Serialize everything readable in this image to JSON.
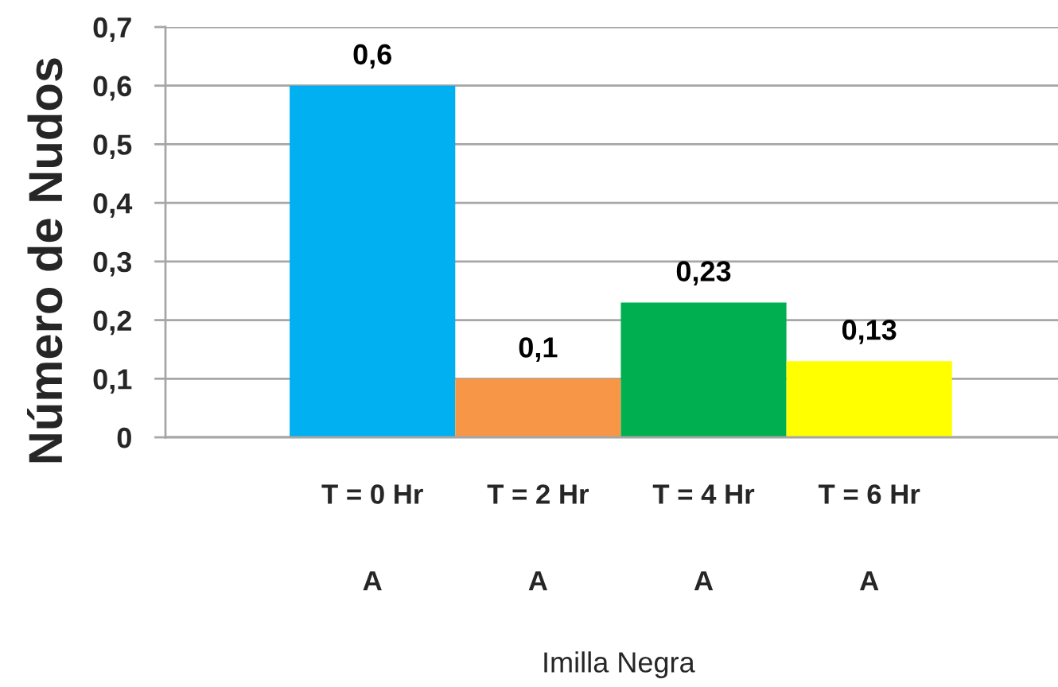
{
  "chart_data": {
    "type": "bar",
    "ylabel": "Número de Nudos",
    "categories": [
      "T = 0 Hr",
      "T = 2 Hr",
      "T = 4 Hr",
      "T = 6 Hr"
    ],
    "values": [
      0.6,
      0.1,
      0.23,
      0.13
    ],
    "colors": [
      "#00b0f0",
      "#f79646",
      "#00b050",
      "#ffff00"
    ],
    "value_labels": [
      "0,6",
      "0,1",
      "0,23",
      "0,13"
    ],
    "ylim": [
      0,
      0.7
    ],
    "yticks": [
      0,
      {
        "value": 0.1,
        "label": "0,1"
      },
      {
        "value": 0.2,
        "label": "0,2"
      },
      {
        "value": 0.3,
        "label": "0,3"
      },
      {
        "value": 0.4,
        "label": "0,4"
      },
      {
        "value": 0.5,
        "label": "0,5"
      },
      {
        "value": 0.6,
        "label": "0,6"
      },
      {
        "value": 0.7,
        "label": "0,7"
      }
    ],
    "grid": "y",
    "annotations": [
      "A",
      "A",
      "A",
      "A",
      "Imilla Negra"
    ]
  }
}
